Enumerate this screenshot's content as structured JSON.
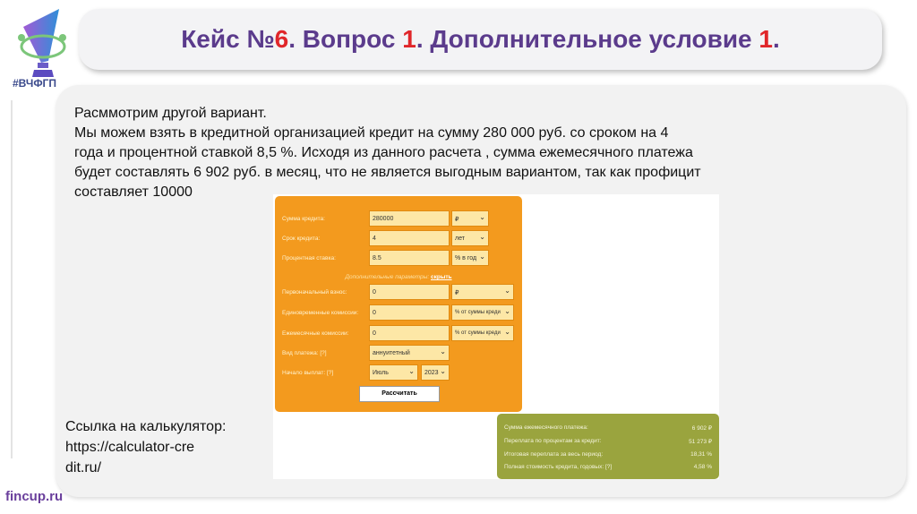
{
  "logo": {
    "text": "#ВЧФГП"
  },
  "title": {
    "part1": "Кейс № ",
    "num1": "6",
    "part2": ". Вопрос ",
    "num2": "1",
    "part3": ". Дополнительное условие ",
    "num3": "1",
    "part4": "."
  },
  "body": {
    "lines": [
      "Расммотрим другой вариант.",
      "Мы можем взять в кредитной организацией кредит на сумму 280 000 руб. со сроком на 4 года и процентной ставкой 8,5 %. Исходя из данного расчета , сумма ежемесячного платежа будет составлять 6 902 руб. в месяц, что не является выгодным вариантом, так как профицит составляет 10000"
    ]
  },
  "link": {
    "label": "Ссылка на калькулятор:",
    "url": "https://calculator-credit.ru/"
  },
  "calculator": {
    "amount_label": "Сумма кредита:",
    "amount": "280000",
    "amount_unit": "₽",
    "term_label": "Срок кредита:",
    "term": "4",
    "term_unit": "лет",
    "rate_label": "Процентная ставка:",
    "rate": "8.5",
    "rate_unit": "% в год",
    "extra_label": "Дополнительные параметры:",
    "extra_link": "скрыть",
    "down_label": "Первоначальный взнос:",
    "down": "0",
    "down_unit": "₽",
    "onetime_label": "Единовременные комиссии:",
    "onetime": "0",
    "onetime_unit": "% от суммы креди",
    "monthly_label": "Ежемесячные комиссии:",
    "monthly": "0",
    "monthly_unit": "% от суммы креди",
    "type_label": "Вид платежа: [?]",
    "type": "аннуитетный",
    "start_label": "Начало выплат: [?]",
    "start_month": "Июль",
    "start_year": "2023",
    "calc_button": "Рассчитать"
  },
  "results": [
    {
      "label": "Сумма ежемесячного платежа:",
      "value": "6 902 ₽"
    },
    {
      "label": "Переплата по процентам за кредит:",
      "value": "51 273 ₽"
    },
    {
      "label": "Итоговая переплата за весь период:",
      "value": "18,31 %"
    },
    {
      "label": "Полная стоимость кредита, годовых: [?]",
      "value": "4,58 %"
    }
  ],
  "footer": {
    "text": "fincup.ru"
  },
  "colors": {
    "title": "#5b3b8c",
    "accent": "#e0262a",
    "form": "#f39a1e",
    "results": "#9aa43e"
  }
}
